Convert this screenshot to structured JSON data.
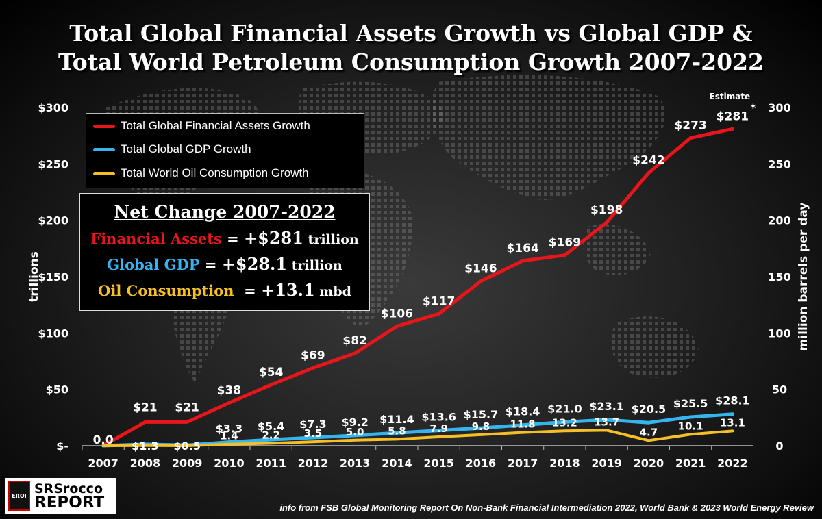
{
  "header": {
    "title_line1": "Total Global Financial Assets Growth vs Global GDP &",
    "title_line2": "Total World Petroleum Consumption Growth 2007-2022"
  },
  "legend": [
    {
      "label": "Total Global Financial Assets Growth",
      "color": "#e8151b"
    },
    {
      "label": "Total Global GDP Growth",
      "color": "#36b4ee"
    },
    {
      "label": "Total World Oil Consumption Growth",
      "color": "#f5bf25"
    }
  ],
  "net_change": {
    "title": "Net Change 2007-2022",
    "assets_label": "Financial Assets",
    "assets_eq": " = ",
    "assets_value": "+$281",
    "assets_unit": " trillion",
    "gdp_label": "Global GDP",
    "gdp_eq": " = ",
    "gdp_value": "+$28.1",
    "gdp_unit": " trillion",
    "oil_label": "Oil Consumption",
    "oil_eq": "  = ",
    "oil_value": "+13.1",
    "oil_unit": " mbd"
  },
  "annotation": {
    "estimate": "Estimate",
    "asterisk": "*"
  },
  "logo": {
    "mark": "EROI",
    "line1": "SRSrocco",
    "line2": "REPORT"
  },
  "source": "info from FSB Global Monitoring Report On Non-Bank Financial Intermediation 2022, World Bank & 2023 World Energy Review",
  "chart_data": {
    "type": "line",
    "x": [
      "2007",
      "2008",
      "2009",
      "2010",
      "2011",
      "2012",
      "2013",
      "2014",
      "2015",
      "2016",
      "2017",
      "2018",
      "2019",
      "2020",
      "2021",
      "2022"
    ],
    "ylabel_left": "trillions",
    "ylabel_right": "million barrels per day",
    "ylim_left": [
      0,
      300
    ],
    "ylim_right": [
      0,
      300
    ],
    "left_ticks": [
      "$-",
      "$50",
      "$100",
      "$150",
      "$200",
      "$250",
      "$300"
    ],
    "right_ticks": [
      "0",
      "50",
      "100",
      "150",
      "200",
      "250",
      "300"
    ],
    "series": [
      {
        "name": "Total Global Financial Assets Growth",
        "axis": "left",
        "color": "#e8151b",
        "values": [
          0,
          21,
          21,
          38,
          54,
          69,
          82,
          106,
          117,
          146,
          164,
          169,
          198,
          242,
          273,
          281
        ],
        "labels": [
          "0.0",
          "$21",
          "$21",
          "$38",
          "$54",
          "$69",
          "$82",
          "$106",
          "$117",
          "$146",
          "$164",
          "$169",
          "$198",
          "$242",
          "$273",
          "$281"
        ]
      },
      {
        "name": "Total Global GDP Growth",
        "axis": "left",
        "color": "#36b4ee",
        "values": [
          0,
          1.3,
          0.5,
          3.3,
          5.4,
          7.3,
          9.2,
          11.4,
          13.6,
          15.7,
          18.4,
          21.0,
          23.1,
          20.5,
          25.5,
          28.1
        ],
        "labels": [
          "",
          "$1.3",
          "$0.5",
          "$3.3",
          "$5.4",
          "$7.3",
          "$9.2",
          "$11.4",
          "$13.6",
          "$15.7",
          "$18.4",
          "$21.0",
          "$23.1",
          "$20.5",
          "$25.5",
          "$28.1"
        ]
      },
      {
        "name": "Total World Oil Consumption Growth",
        "axis": "right",
        "color": "#f5bf25",
        "values": [
          0,
          0.2,
          0,
          1.4,
          2.2,
          3.5,
          5.0,
          5.8,
          7.9,
          9.8,
          11.8,
          13.2,
          13.7,
          4.7,
          10.1,
          13.1
        ],
        "labels": [
          "",
          "",
          "",
          "1.4",
          "2.2",
          "3.5",
          "5.0",
          "5.8",
          "7.9",
          "9.8",
          "11.8",
          "13.2",
          "13.7",
          "4.7",
          "10.1",
          "13.1"
        ]
      }
    ]
  }
}
